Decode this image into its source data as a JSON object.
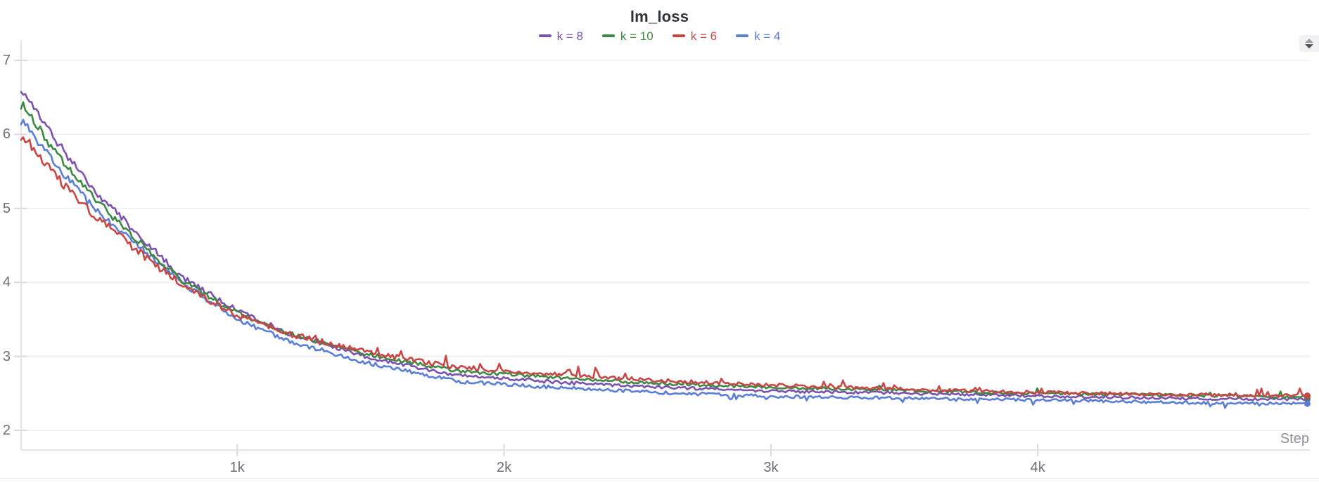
{
  "header": {
    "title": "lm_loss"
  },
  "legend": {
    "items": [
      {
        "label": "k = 8",
        "color": "#7b52ae"
      },
      {
        "label": "k = 10",
        "color": "#3e8744"
      },
      {
        "label": "k = 6",
        "color": "#c84646"
      },
      {
        "label": "k = 4",
        "color": "#5a7dd5"
      }
    ]
  },
  "axes": {
    "x_axis_label": "Step",
    "y_ticks": [
      "7",
      "6",
      "5",
      "4",
      "3",
      "2"
    ],
    "x_ticks": [
      "1k",
      "2k",
      "3k",
      "4k"
    ]
  },
  "controls": {
    "stepper_icon": "up-down-stepper"
  },
  "chart_data": {
    "type": "line",
    "title": "lm_loss",
    "xlabel": "Step",
    "ylabel": "",
    "grid": "horizontal",
    "legend_position": "top-center",
    "x_axis": {
      "tick_values": [
        1000,
        2000,
        3000,
        4000
      ],
      "tick_labels": [
        "1k",
        "2k",
        "3k",
        "4k"
      ],
      "range": [
        190,
        5010
      ]
    },
    "y_axis": {
      "tick_values": [
        7,
        6,
        5,
        4,
        3,
        2
      ],
      "range": [
        1.73,
        7.27
      ]
    },
    "sample_steps": [
      190,
      300,
      450,
      600,
      800,
      1000,
      1200,
      1500,
      1825,
      2000,
      2300,
      2600,
      3000,
      3400,
      3800,
      4200,
      4600,
      5010
    ],
    "series": [
      {
        "name": "k = 8",
        "color": "#7b52ae",
        "seed": 8,
        "spikes": "none",
        "values": [
          6.66,
          6.02,
          5.3,
          4.75,
          4.05,
          3.62,
          3.3,
          2.98,
          2.74,
          2.7,
          2.63,
          2.58,
          2.53,
          2.51,
          2.48,
          2.45,
          2.43,
          2.42
        ]
      },
      {
        "name": "k = 10",
        "color": "#3e8744",
        "seed": 10,
        "spikes": "up-late",
        "values": [
          6.44,
          5.85,
          5.18,
          4.66,
          4.0,
          3.58,
          3.3,
          3.02,
          2.8,
          2.76,
          2.69,
          2.63,
          2.58,
          2.55,
          2.51,
          2.49,
          2.47,
          2.45
        ]
      },
      {
        "name": "k = 6",
        "color": "#c84646",
        "seed": 6,
        "spikes": "up",
        "values": [
          6.03,
          5.52,
          4.95,
          4.5,
          3.95,
          3.55,
          3.3,
          3.05,
          2.85,
          2.8,
          2.73,
          2.67,
          2.61,
          2.57,
          2.53,
          2.5,
          2.48,
          2.47
        ]
      },
      {
        "name": "k = 4",
        "color": "#5a7dd5",
        "seed": 4,
        "spikes": "down-late",
        "values": [
          6.23,
          5.68,
          5.05,
          4.58,
          3.98,
          3.5,
          3.2,
          2.9,
          2.66,
          2.62,
          2.56,
          2.51,
          2.46,
          2.44,
          2.42,
          2.4,
          2.37,
          2.36
        ]
      }
    ],
    "style": {
      "line_width": 2.6,
      "end_dot_radius": 4.5,
      "noise_base": 0.018,
      "noise_early": 0.042,
      "noise_decay_tau": 900
    }
  }
}
